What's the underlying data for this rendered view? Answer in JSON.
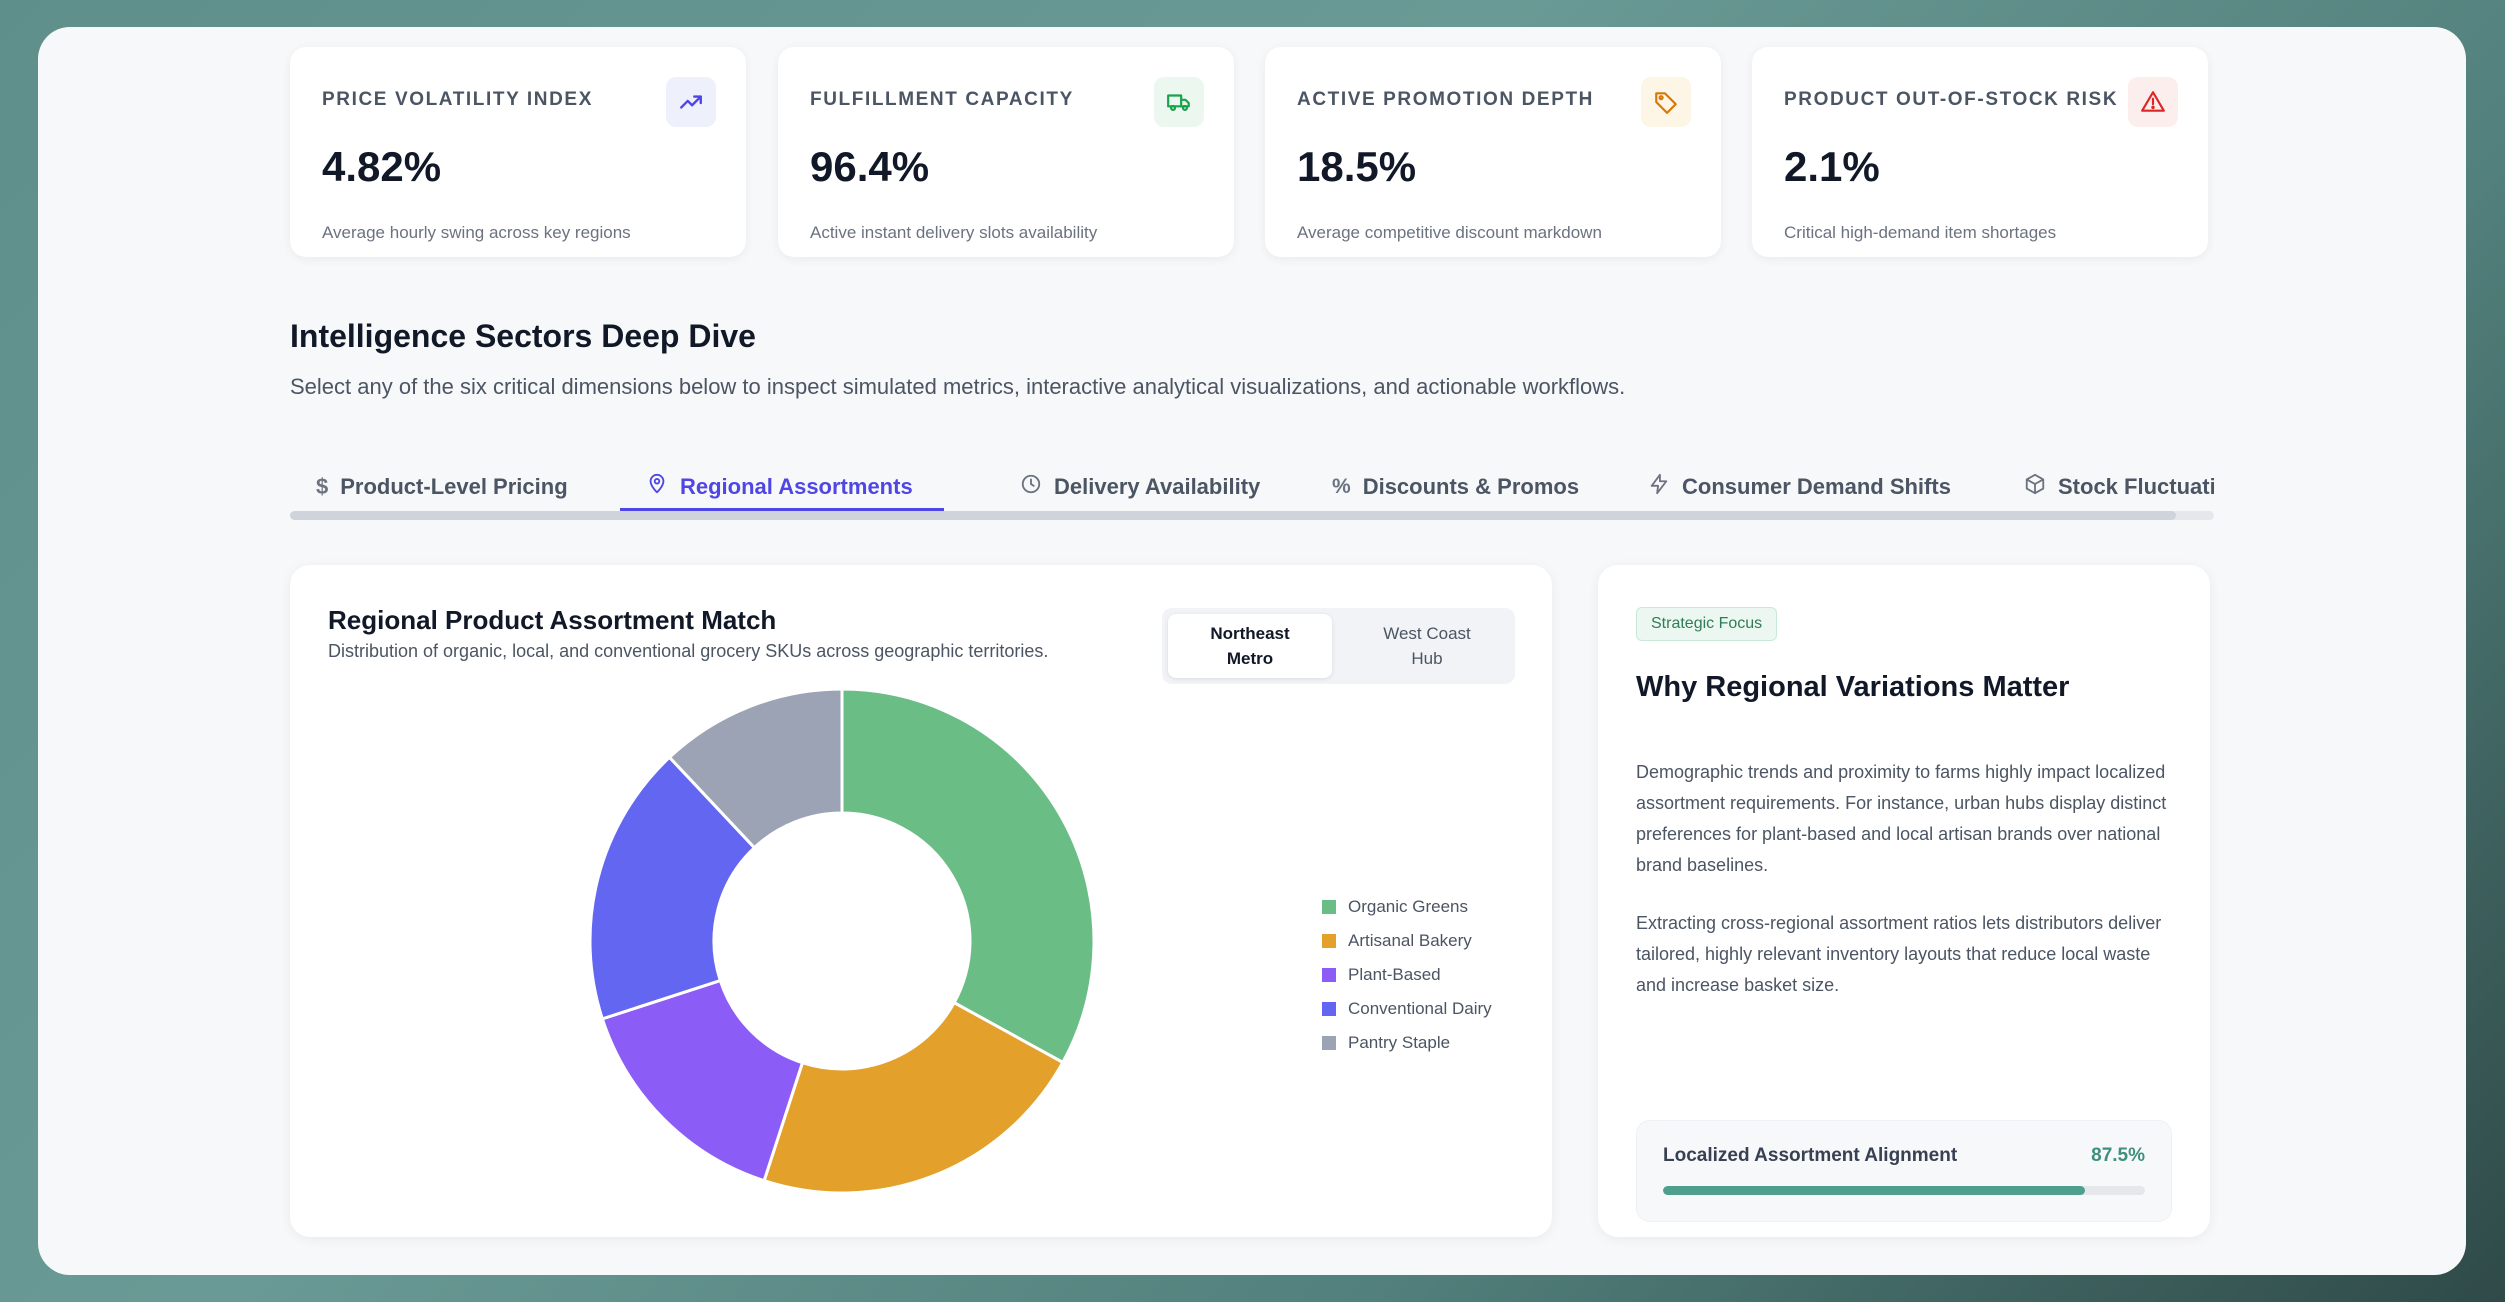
{
  "kpis": [
    {
      "label": "PRICE VOLATILITY INDEX",
      "value": "4.82%",
      "sub": "Average hourly swing across key regions",
      "icon": "trending-up-icon",
      "color": "#4f46e5"
    },
    {
      "label": "FULFILLMENT CAPACITY",
      "value": "96.4%",
      "sub": "Active instant delivery slots availability",
      "icon": "truck-icon",
      "color": "#16a34a"
    },
    {
      "label": "ACTIVE PROMOTION DEPTH",
      "value": "18.5%",
      "sub": "Average competitive discount markdown",
      "icon": "tag-icon",
      "color": "#d97706"
    },
    {
      "label": "PRODUCT OUT-OF-STOCK RISK",
      "value": "2.1%",
      "sub": "Critical high-demand item shortages",
      "icon": "alert-triangle-icon",
      "color": "#dc2626"
    }
  ],
  "section": {
    "title": "Intelligence Sectors Deep Dive",
    "description": "Select any of the six critical dimensions below to inspect simulated metrics, interactive analytical visualizations, and actionable workflows."
  },
  "tabs": [
    {
      "label": "Product-Level Pricing",
      "icon": "dollar-icon",
      "active": false
    },
    {
      "label": "Regional Assortments",
      "icon": "map-pin-icon",
      "active": true
    },
    {
      "label": "Delivery Availability",
      "icon": "clock-icon",
      "active": false
    },
    {
      "label": "Discounts & Promos",
      "icon": "percent-icon",
      "active": false
    },
    {
      "label": "Consumer Demand Shifts",
      "icon": "zap-icon",
      "active": false
    },
    {
      "label": "Stock Fluctuations",
      "icon": "box-icon",
      "active": false
    }
  ],
  "chart_card": {
    "title": "Regional Product Assortment Match",
    "subtitle": "Distribution of organic, local, and conventional grocery SKUs across geographic territories.",
    "toggle": {
      "active": "Northeast Metro",
      "inactive": "West Coast Hub"
    }
  },
  "chart_data": {
    "type": "pie",
    "donut": true,
    "title": "",
    "categories": [
      "Organic Greens",
      "Artisanal Bakery",
      "Plant-Based",
      "Conventional Dairy",
      "Pantry Staple"
    ],
    "values": [
      33,
      22,
      15,
      18,
      12
    ],
    "colors": [
      "#6bbd86",
      "#e3a02b",
      "#8b5cf6",
      "#6366f1",
      "#9ca3b4"
    ],
    "legend": "right"
  },
  "side_card": {
    "badge": "Strategic Focus",
    "title": "Why Regional Variations Matter",
    "p1": "Demographic trends and proximity to farms highly impact localized assortment requirements. For instance, urban hubs display distinct preferences for plant-based and local artisan brands over national brand baselines.",
    "p2": "Extracting cross-regional assortment ratios lets distributors deliver tailored, highly relevant inventory layouts that reduce local waste and increase basket size.",
    "progress": {
      "label": "Localized Assortment Alignment",
      "value_text": "87.5%",
      "value": 87.5
    }
  }
}
